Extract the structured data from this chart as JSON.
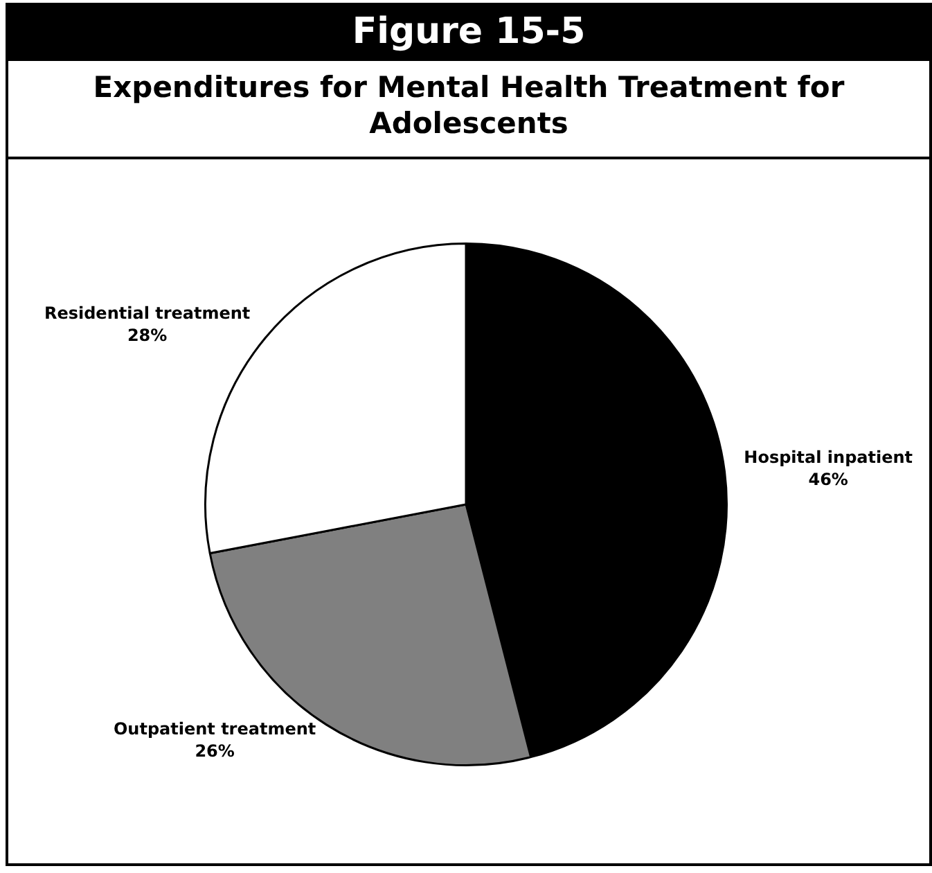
{
  "chart_data": {
    "type": "pie",
    "title": "Figure 15-5",
    "subtitle": "Expenditures for Mental Health Treatment for Adolescents",
    "categories": [
      "Hospital inpatient",
      "Outpatient treatment",
      "Residential treatment"
    ],
    "values": [
      46,
      26,
      28
    ],
    "colors": [
      "#000000",
      "#808080",
      "#ffffff"
    ],
    "value_labels": [
      "46%",
      "26%",
      "28%"
    ],
    "legend": false
  }
}
